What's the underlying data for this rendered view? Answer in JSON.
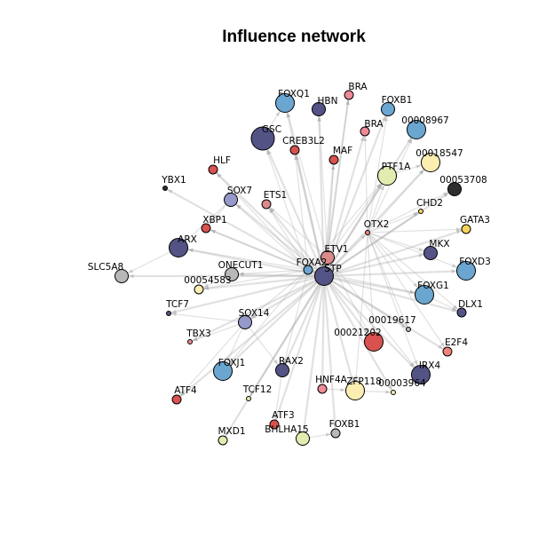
{
  "title": "Influence network",
  "colors": {
    "navy": "#545385",
    "blue": "#6ba6d1",
    "red": "#d8524f",
    "pink": "#ef8a97",
    "cream": "#fbeeb0",
    "lime": "#e3ecb0",
    "yellow": "#f6d45a",
    "grey": "#b8b8b8",
    "dark": "#2e2e2e",
    "lavender": "#9598c9",
    "salmon": "#f0847a",
    "rose": "#d98a8a",
    "edge": "#a9a9a9"
  },
  "nodes": [
    {
      "id": "STP",
      "label": "STP",
      "color": "navy",
      "size": 3
    },
    {
      "id": "FOXA2",
      "label": "FOXA2",
      "color": "blue",
      "size": 1
    },
    {
      "id": "ETV1",
      "label": "ETV1",
      "color": "rose",
      "size": 2
    },
    {
      "id": "OTX2",
      "label": "OTX2",
      "color": "salmon",
      "size": 0
    },
    {
      "id": "FOXQ1",
      "label": "FOXQ1",
      "color": "blue",
      "size": 3
    },
    {
      "id": "HBN",
      "label": "HBN",
      "color": "navy",
      "size": 2
    },
    {
      "id": "BRA1",
      "label": "BRA",
      "color": "pink",
      "size": 1
    },
    {
      "id": "FOXB1a",
      "label": "FOXB1",
      "color": "blue",
      "size": 2
    },
    {
      "id": "BRA2",
      "label": "BRA",
      "color": "pink",
      "size": 1
    },
    {
      "id": "n00008967",
      "label": "00008967",
      "color": "blue",
      "size": 3
    },
    {
      "id": "GSC",
      "label": "GSC",
      "color": "navy",
      "size": 4
    },
    {
      "id": "CREB3L2",
      "label": "CREB3L2",
      "color": "red",
      "size": 1
    },
    {
      "id": "MAF",
      "label": "MAF",
      "color": "red",
      "size": 1
    },
    {
      "id": "n00018547",
      "label": "00018547",
      "color": "cream",
      "size": 3
    },
    {
      "id": "PTF1A",
      "label": "PTF1A",
      "color": "lime",
      "size": 3
    },
    {
      "id": "n00053708",
      "label": "00053708",
      "color": "dark",
      "size": 2
    },
    {
      "id": "HLF",
      "label": "HLF",
      "color": "red",
      "size": 1
    },
    {
      "id": "YBX1",
      "label": "YBX1",
      "color": "dark",
      "size": 0
    },
    {
      "id": "SOX7",
      "label": "SOX7",
      "color": "lavender",
      "size": 2
    },
    {
      "id": "ETS1",
      "label": "ETS1",
      "color": "rose",
      "size": 1
    },
    {
      "id": "CHD2",
      "label": "CHD2",
      "color": "yellow",
      "size": 0
    },
    {
      "id": "GATA3",
      "label": "GATA3",
      "color": "yellow",
      "size": 1
    },
    {
      "id": "XBP1",
      "label": "XBP1",
      "color": "red",
      "size": 1
    },
    {
      "id": "ARX",
      "label": "ARX",
      "color": "navy",
      "size": 3
    },
    {
      "id": "MKX",
      "label": "MKX",
      "color": "navy",
      "size": 2
    },
    {
      "id": "FOXD3",
      "label": "FOXD3",
      "color": "blue",
      "size": 3
    },
    {
      "id": "SLC5A8",
      "label": "SLC5A8",
      "color": "grey",
      "size": 2
    },
    {
      "id": "ONECUT1",
      "label": "ONECUT1",
      "color": "grey",
      "size": 2
    },
    {
      "id": "n00054583",
      "label": "00054583",
      "color": "cream",
      "size": 1
    },
    {
      "id": "FOXG1",
      "label": "FOXG1",
      "color": "blue",
      "size": 3
    },
    {
      "id": "DLX1",
      "label": "DLX1",
      "color": "navy",
      "size": 1
    },
    {
      "id": "TCF7",
      "label": "TCF7",
      "color": "navy",
      "size": 0
    },
    {
      "id": "SOX14",
      "label": "SOX14",
      "color": "lavender",
      "size": 2
    },
    {
      "id": "n00019617",
      "label": "00019617",
      "color": "grey",
      "size": 0
    },
    {
      "id": "TBX3",
      "label": "TBX3",
      "color": "pink",
      "size": 0
    },
    {
      "id": "n00021202",
      "label": "00021202",
      "color": "red",
      "size": 3
    },
    {
      "id": "E2F4",
      "label": "E2F4",
      "color": "salmon",
      "size": 1
    },
    {
      "id": "FOXJ1",
      "label": "FOXJ1",
      "color": "blue",
      "size": 3
    },
    {
      "id": "RAX2",
      "label": "RAX2",
      "color": "navy",
      "size": 2
    },
    {
      "id": "IRX4",
      "label": "IRX4",
      "color": "navy",
      "size": 3
    },
    {
      "id": "ATF4",
      "label": "ATF4",
      "color": "red",
      "size": 1
    },
    {
      "id": "TCF12",
      "label": "TCF12",
      "color": "lime",
      "size": 0
    },
    {
      "id": "HNF4A",
      "label": "HNF4A",
      "color": "pink",
      "size": 1
    },
    {
      "id": "ZFP118",
      "label": "ZFP118",
      "color": "cream",
      "size": 3
    },
    {
      "id": "n00003964",
      "label": "00003964",
      "color": "cream",
      "size": 0
    },
    {
      "id": "ATF3",
      "label": "ATF3",
      "color": "red",
      "size": 1
    },
    {
      "id": "MXD1",
      "label": "MXD1",
      "color": "lime",
      "size": 1
    },
    {
      "id": "BHLHA15",
      "label": "BHLHA15",
      "color": "lime",
      "size": 2
    },
    {
      "id": "FOXB1b",
      "label": "FOXB1",
      "color": "grey",
      "size": 1
    }
  ],
  "edges": [
    [
      "STP",
      "FOXQ1"
    ],
    [
      "STP",
      "HBN"
    ],
    [
      "STP",
      "BRA1"
    ],
    [
      "STP",
      "FOXB1a"
    ],
    [
      "STP",
      "BRA2"
    ],
    [
      "STP",
      "n00008967"
    ],
    [
      "STP",
      "GSC"
    ],
    [
      "STP",
      "CREB3L2"
    ],
    [
      "STP",
      "MAF"
    ],
    [
      "STP",
      "n00018547"
    ],
    [
      "STP",
      "PTF1A"
    ],
    [
      "STP",
      "n00053708"
    ],
    [
      "STP",
      "HLF"
    ],
    [
      "STP",
      "YBX1"
    ],
    [
      "STP",
      "SOX7"
    ],
    [
      "STP",
      "ETS1"
    ],
    [
      "STP",
      "CHD2"
    ],
    [
      "STP",
      "GATA3"
    ],
    [
      "STP",
      "XBP1"
    ],
    [
      "STP",
      "ARX"
    ],
    [
      "STP",
      "MKX"
    ],
    [
      "STP",
      "FOXD3"
    ],
    [
      "STP",
      "SLC5A8"
    ],
    [
      "STP",
      "ONECUT1"
    ],
    [
      "STP",
      "n00054583"
    ],
    [
      "STP",
      "FOXG1"
    ],
    [
      "STP",
      "DLX1"
    ],
    [
      "STP",
      "TCF7"
    ],
    [
      "STP",
      "SOX14"
    ],
    [
      "STP",
      "n00019617"
    ],
    [
      "STP",
      "TBX3"
    ],
    [
      "STP",
      "n00021202"
    ],
    [
      "STP",
      "E2F4"
    ],
    [
      "STP",
      "FOXJ1"
    ],
    [
      "STP",
      "RAX2"
    ],
    [
      "STP",
      "IRX4"
    ],
    [
      "STP",
      "ATF4"
    ],
    [
      "STP",
      "TCF12"
    ],
    [
      "STP",
      "HNF4A"
    ],
    [
      "STP",
      "ZFP118"
    ],
    [
      "STP",
      "n00003964"
    ],
    [
      "STP",
      "ATF3"
    ],
    [
      "STP",
      "MXD1"
    ],
    [
      "STP",
      "BHLHA15"
    ],
    [
      "STP",
      "FOXB1b"
    ],
    [
      "STP",
      "OTX2"
    ],
    [
      "STP",
      "ETV1"
    ],
    [
      "STP",
      "FOXA2"
    ],
    [
      "FOXA2",
      "GSC"
    ],
    [
      "FOXA2",
      "SOX7"
    ],
    [
      "FOXA2",
      "ARX"
    ],
    [
      "FOXA2",
      "XBP1"
    ],
    [
      "FOXA2",
      "HLF"
    ],
    [
      "FOXA2",
      "ONECUT1"
    ],
    [
      "FOXA2",
      "SOX14"
    ],
    [
      "FOXA2",
      "FOXJ1"
    ],
    [
      "FOXA2",
      "RAX2"
    ],
    [
      "FOXA2",
      "PTF1A"
    ],
    [
      "FOXA2",
      "ETS1"
    ],
    [
      "FOXA2",
      "CREB3L2"
    ],
    [
      "FOXA2",
      "FOXG1"
    ],
    [
      "FOXA2",
      "n00054583"
    ],
    [
      "ETV1",
      "FOXQ1"
    ],
    [
      "ETV1",
      "BRA1"
    ],
    [
      "ETV1",
      "MAF"
    ],
    [
      "ETV1",
      "PTF1A"
    ],
    [
      "ETV1",
      "ETS1"
    ],
    [
      "ETV1",
      "HBN"
    ],
    [
      "ETV1",
      "n00021202"
    ],
    [
      "ETV1",
      "IRX4"
    ],
    [
      "OTX2",
      "BRA2"
    ],
    [
      "OTX2",
      "n00018547"
    ],
    [
      "OTX2",
      "n00053708"
    ],
    [
      "OTX2",
      "CHD2"
    ],
    [
      "OTX2",
      "GATA3"
    ],
    [
      "OTX2",
      "MKX"
    ],
    [
      "OTX2",
      "FOXD3"
    ],
    [
      "OTX2",
      "FOXG1"
    ],
    [
      "OTX2",
      "DLX1"
    ],
    [
      "OTX2",
      "n00021202"
    ],
    [
      "OTX2",
      "IRX4"
    ],
    [
      "OTX2",
      "ZFP118"
    ],
    [
      "OTX2",
      "n00019617"
    ],
    [
      "OTX2",
      "PTF1A"
    ],
    [
      "OTX2",
      "FOXB1a"
    ],
    [
      "OTX2",
      "n00008967"
    ],
    [
      "OTX2",
      "E2F4"
    ],
    [
      "SOX14",
      "FOXJ1"
    ],
    [
      "SOX14",
      "ATF4"
    ],
    [
      "SOX14",
      "TCF7"
    ],
    [
      "SOX14",
      "TBX3"
    ],
    [
      "SOX14",
      "RAX2"
    ],
    [
      "SOX7",
      "ARX"
    ],
    [
      "SOX7",
      "XBP1"
    ],
    [
      "ARX",
      "SLC5A8"
    ],
    [
      "ONECUT1",
      "n00054583"
    ],
    [
      "PTF1A",
      "n00018547"
    ],
    [
      "GSC",
      "FOXQ1"
    ],
    [
      "FOXG1",
      "DLX1"
    ],
    [
      "ZFP118",
      "n00003964"
    ],
    [
      "RAX2",
      "ATF3"
    ],
    [
      "HNF4A",
      "ZFP118"
    ],
    [
      "BHLHA15",
      "FOXB1b"
    ]
  ]
}
